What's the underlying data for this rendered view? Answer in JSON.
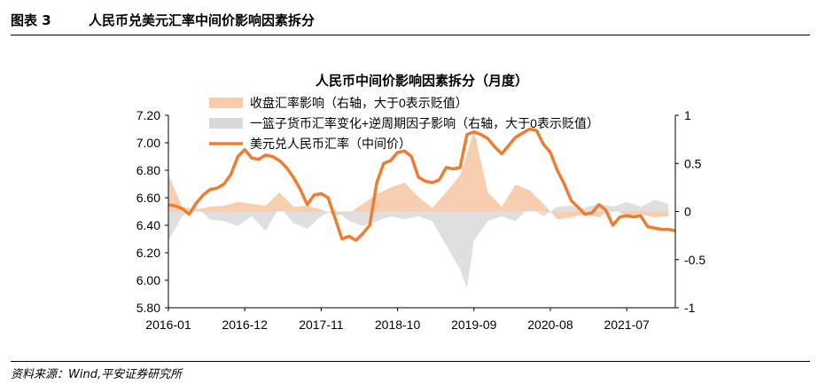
{
  "figure": {
    "number": "图表 3",
    "title": "人民币兑美元汇率中间价影响因素拆分",
    "source": "资料来源：Wind,平安证券研究所"
  },
  "colors": {
    "rate_line": "#ED7D31",
    "income_area": "#F8CBAD",
    "basket_area": "#D9D9D9",
    "axis": "#000000"
  },
  "chart_data": {
    "type": "line",
    "title": "人民币中间价影响因素拆分（月度）",
    "legend_placement": "top",
    "grid": false,
    "x_ticks": [
      "2016-01",
      "2016-12",
      "2017-11",
      "2018-10",
      "2019-09",
      "2020-08",
      "2021-07"
    ],
    "x_range": [
      "2016-01",
      "2022-02"
    ],
    "left_axis": {
      "ylim": [
        5.8,
        7.2
      ],
      "ticks": [
        "5.80",
        "6.00",
        "6.20",
        "6.40",
        "6.60",
        "6.80",
        "7.00",
        "7.20"
      ]
    },
    "right_axis": {
      "ylim": [
        -1,
        1
      ],
      "ticks": [
        "-1",
        "-0.5",
        "0",
        "0.5",
        "1"
      ]
    },
    "series": [
      {
        "name": "收盘汇率影响（右轴，大于0表示贬值）",
        "kind": "area",
        "axis": "right",
        "x": [
          "2016-01",
          "2016-03",
          "2016-05",
          "2016-07",
          "2016-09",
          "2016-11",
          "2017-01",
          "2017-03",
          "2017-05",
          "2017-07",
          "2017-09",
          "2017-11",
          "2018-01",
          "2018-03",
          "2018-05",
          "2018-07",
          "2018-09",
          "2018-11",
          "2019-01",
          "2019-03",
          "2019-05",
          "2019-07",
          "2019-08",
          "2019-09",
          "2019-11",
          "2020-01",
          "2020-03",
          "2020-05",
          "2020-07",
          "2020-09",
          "2020-11",
          "2021-01",
          "2021-03",
          "2021-05",
          "2021-07",
          "2021-09",
          "2021-11",
          "2022-01"
        ],
        "values": [
          0.38,
          0.05,
          0.02,
          0.05,
          0.06,
          0.1,
          0.08,
          0.06,
          0.2,
          0.05,
          0.06,
          0.02,
          -0.04,
          -0.02,
          0.08,
          0.18,
          0.25,
          0.3,
          0.15,
          0.04,
          0.2,
          0.38,
          0.6,
          0.85,
          0.2,
          0.05,
          0.28,
          0.22,
          0.08,
          -0.08,
          -0.06,
          -0.03,
          -0.06,
          0.03,
          -0.05,
          -0.03,
          -0.06,
          -0.05
        ]
      },
      {
        "name": "一篮子货币汇率变化+逆周期因子影响（右轴，大于0表示贬值）",
        "kind": "area",
        "axis": "right",
        "x": [
          "2016-01",
          "2016-03",
          "2016-05",
          "2016-07",
          "2016-09",
          "2016-11",
          "2017-01",
          "2017-03",
          "2017-05",
          "2017-07",
          "2017-09",
          "2017-11",
          "2018-01",
          "2018-03",
          "2018-05",
          "2018-07",
          "2018-09",
          "2018-11",
          "2019-01",
          "2019-03",
          "2019-05",
          "2019-07",
          "2019-08",
          "2019-09",
          "2019-11",
          "2020-01",
          "2020-03",
          "2020-05",
          "2020-07",
          "2020-09",
          "2020-11",
          "2021-01",
          "2021-03",
          "2021-05",
          "2021-07",
          "2021-09",
          "2021-11",
          "2022-01"
        ],
        "values": [
          -0.3,
          -0.05,
          0.05,
          -0.08,
          -0.1,
          -0.15,
          -0.05,
          -0.2,
          0.05,
          -0.12,
          -0.18,
          -0.05,
          0.02,
          -0.1,
          -0.15,
          -0.1,
          -0.05,
          -0.08,
          -0.05,
          -0.1,
          -0.35,
          -0.6,
          -0.8,
          -0.3,
          -0.1,
          -0.05,
          -0.1,
          0.05,
          -0.05,
          0.05,
          0.06,
          0.04,
          0.08,
          0.05,
          0.1,
          0.05,
          0.12,
          0.08
        ]
      },
      {
        "name": "美元兑人民币汇率（中间价）",
        "kind": "line",
        "axis": "left",
        "x": [
          "2016-01",
          "2016-02",
          "2016-03",
          "2016-04",
          "2016-05",
          "2016-06",
          "2016-07",
          "2016-08",
          "2016-09",
          "2016-10",
          "2016-11",
          "2016-12",
          "2017-01",
          "2017-02",
          "2017-03",
          "2017-04",
          "2017-05",
          "2017-06",
          "2017-07",
          "2017-08",
          "2017-09",
          "2017-10",
          "2017-11",
          "2017-12",
          "2018-01",
          "2018-02",
          "2018-03",
          "2018-04",
          "2018-05",
          "2018-06",
          "2018-07",
          "2018-08",
          "2018-09",
          "2018-10",
          "2018-11",
          "2018-12",
          "2019-01",
          "2019-02",
          "2019-03",
          "2019-04",
          "2019-05",
          "2019-06",
          "2019-07",
          "2019-08",
          "2019-09",
          "2019-10",
          "2019-11",
          "2019-12",
          "2020-01",
          "2020-02",
          "2020-03",
          "2020-04",
          "2020-05",
          "2020-06",
          "2020-07",
          "2020-08",
          "2020-09",
          "2020-10",
          "2020-11",
          "2020-12",
          "2021-01",
          "2021-02",
          "2021-03",
          "2021-04",
          "2021-05",
          "2021-06",
          "2021-07",
          "2021-08",
          "2021-09",
          "2021-10",
          "2021-11",
          "2021-12",
          "2022-01",
          "2022-02"
        ],
        "values": [
          6.55,
          6.54,
          6.52,
          6.48,
          6.56,
          6.62,
          6.66,
          6.67,
          6.7,
          6.77,
          6.9,
          6.95,
          6.89,
          6.88,
          6.91,
          6.9,
          6.87,
          6.82,
          6.75,
          6.66,
          6.55,
          6.62,
          6.63,
          6.6,
          6.45,
          6.3,
          6.32,
          6.29,
          6.34,
          6.4,
          6.71,
          6.85,
          6.87,
          6.93,
          6.94,
          6.9,
          6.75,
          6.72,
          6.71,
          6.73,
          6.82,
          6.81,
          6.82,
          7.06,
          7.08,
          7.06,
          7.03,
          6.97,
          6.92,
          6.98,
          7.04,
          7.07,
          7.1,
          7.09,
          6.99,
          6.93,
          6.8,
          6.7,
          6.58,
          6.53,
          6.48,
          6.49,
          6.55,
          6.51,
          6.4,
          6.46,
          6.47,
          6.46,
          6.47,
          6.39,
          6.38,
          6.37,
          6.37,
          6.36
        ]
      }
    ]
  }
}
